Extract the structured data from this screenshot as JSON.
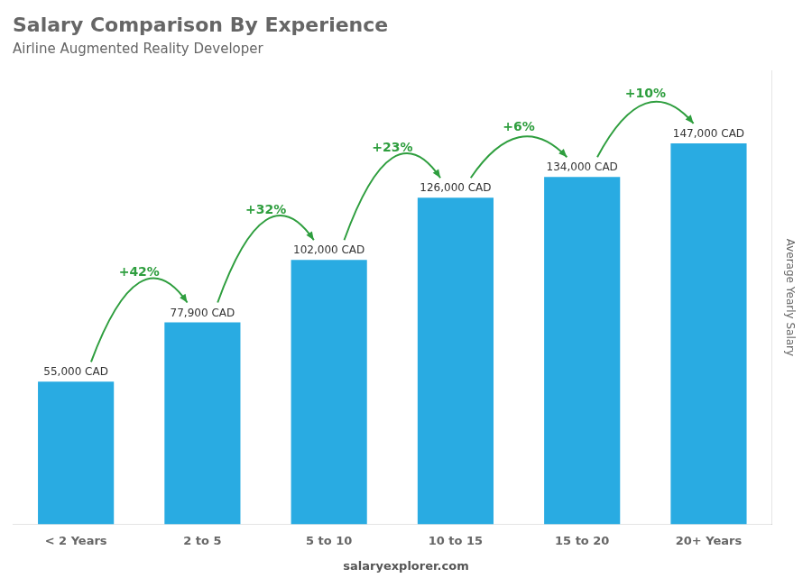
{
  "chart_data": {
    "type": "bar",
    "title": "Salary Comparison By Experience",
    "subtitle": "Airline Augmented Reality Developer",
    "ylabel": "Average Yearly Salary",
    "source": "salaryexplorer.com",
    "categories": [
      "< 2 Years",
      "2 to 5",
      "5 to 10",
      "10 to 15",
      "15 to 20",
      "20+ Years"
    ],
    "values": [
      55000,
      77900,
      102000,
      126000,
      134000,
      147000
    ],
    "value_labels": [
      "55,000 CAD",
      "77,900 CAD",
      "102,000 CAD",
      "126,000 CAD",
      "134,000 CAD",
      "147,000 CAD"
    ],
    "data_labels": true,
    "annotations": [
      "+42%",
      "+32%",
      "+23%",
      "+6%",
      "+10%"
    ],
    "color": "#29ABE2",
    "ylim": [
      0,
      175000
    ],
    "grid": false,
    "tick_labels": "x"
  }
}
